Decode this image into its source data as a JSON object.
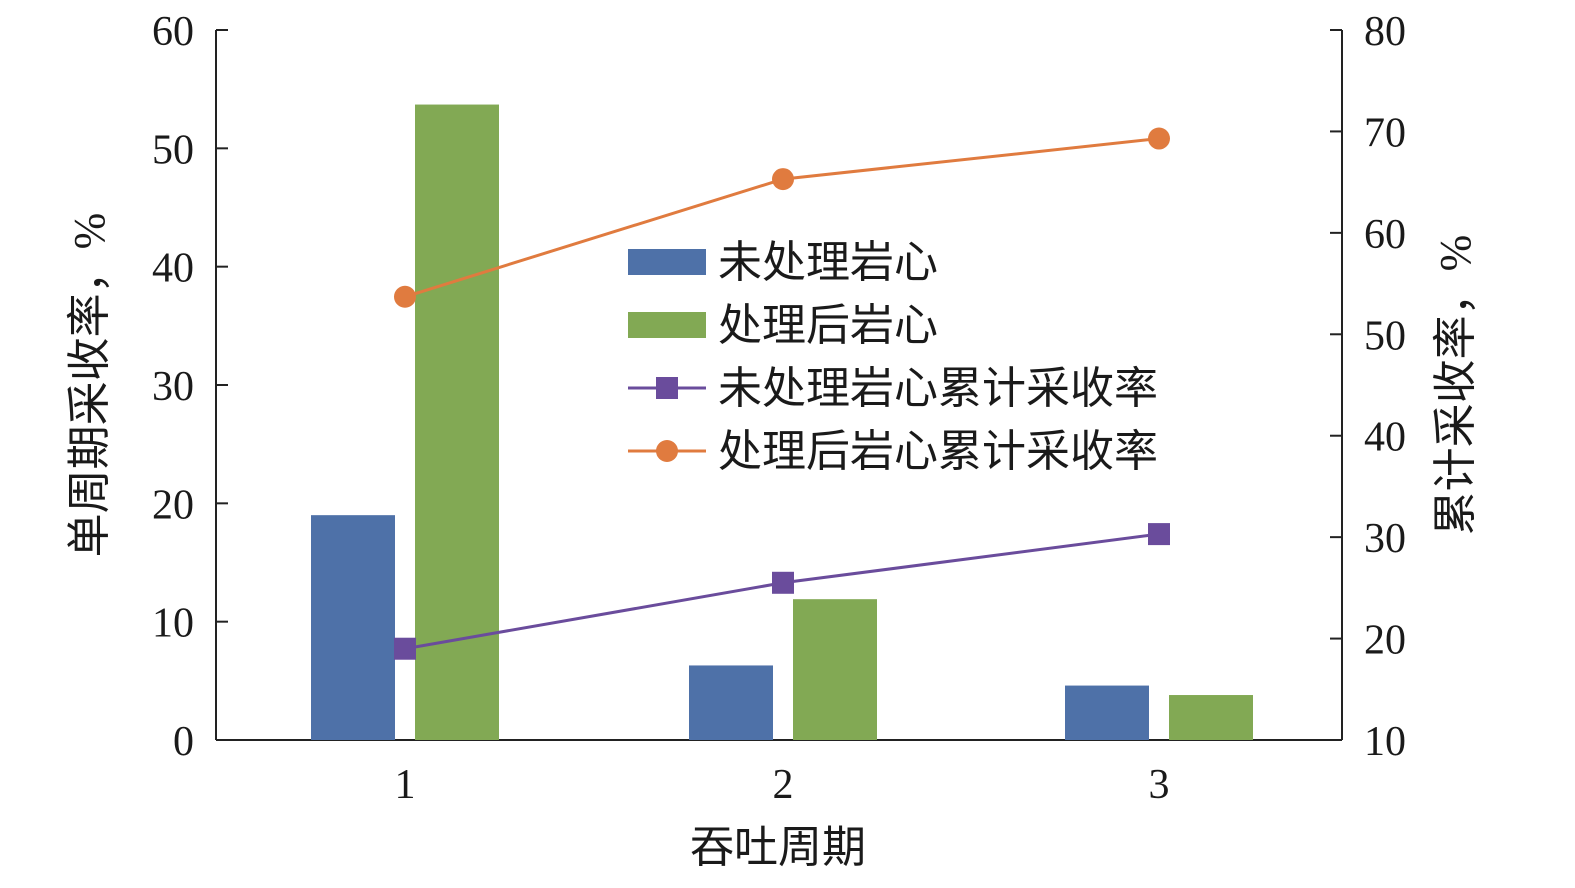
{
  "chart_data": {
    "type": "bar",
    "categories": [
      "1",
      "2",
      "3"
    ],
    "xlabel": "吞吐周期",
    "ylabel": "单周期采收率，%",
    "y2label": "累计采收率，%",
    "ylim": [
      0,
      60
    ],
    "y2lim": [
      10,
      80
    ],
    "yticks": [
      "0",
      "10",
      "20",
      "30",
      "40",
      "50",
      "60"
    ],
    "y2ticks": [
      "10",
      "20",
      "30",
      "40",
      "50",
      "60",
      "70",
      "80"
    ],
    "legend_position": "center",
    "series": [
      {
        "name": "未处理岩心",
        "type": "bar",
        "axis": "left",
        "color": "#4e71a8",
        "values": [
          19.0,
          6.3,
          4.6
        ]
      },
      {
        "name": "处理后岩心",
        "type": "bar",
        "axis": "left",
        "color": "#82a954",
        "values": [
          53.7,
          11.9,
          3.8
        ]
      },
      {
        "name": "未处理岩心累计采收率",
        "type": "line",
        "axis": "right",
        "marker": "square",
        "color": "#6a4c9c",
        "values": [
          19.0,
          25.5,
          30.3
        ]
      },
      {
        "name": "处理后岩心累计采收率",
        "type": "line",
        "axis": "right",
        "marker": "circle",
        "color": "#e07b3f",
        "values": [
          53.7,
          65.3,
          69.3
        ]
      }
    ]
  }
}
